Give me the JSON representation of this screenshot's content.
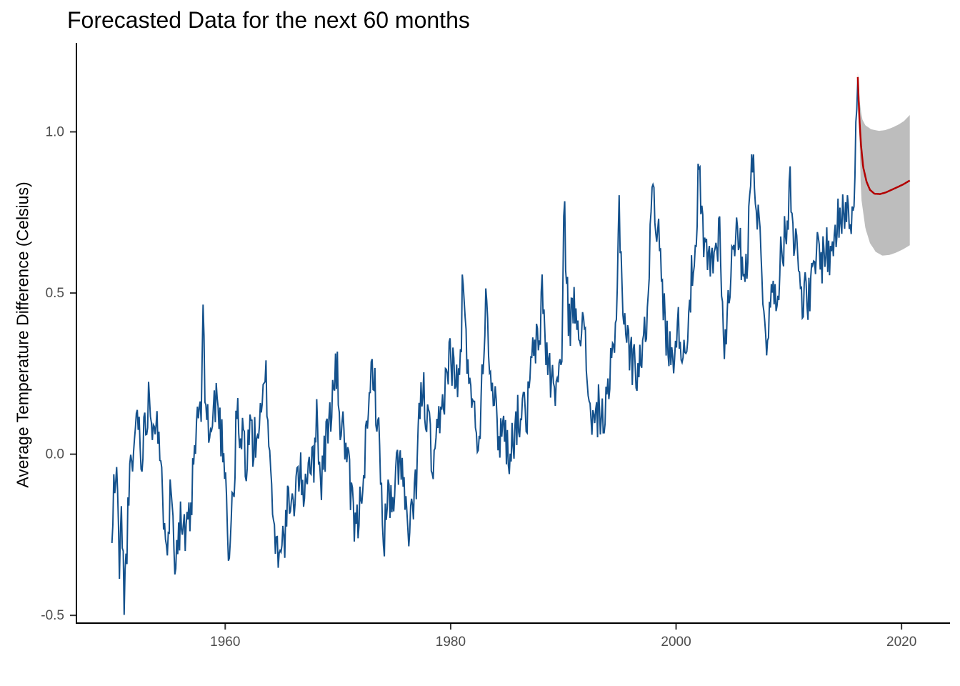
{
  "title": "Forecasted Data for the next 60 months",
  "axes": {
    "y": {
      "title": "Average Temperature Difference (Celsius)",
      "ticks": [
        {
          "value": -0.5,
          "label": "-0.5"
        },
        {
          "value": 0.0,
          "label": "0.0"
        },
        {
          "value": 0.5,
          "label": "0.5"
        },
        {
          "value": 1.0,
          "label": "1.0"
        }
      ]
    },
    "x": {
      "title": "",
      "ticks": [
        {
          "value": 1960,
          "label": "1960"
        },
        {
          "value": 1980,
          "label": "1980"
        },
        {
          "value": 2000,
          "label": "2000"
        },
        {
          "value": 2020,
          "label": "2020"
        }
      ]
    }
  },
  "colors": {
    "observed_line": "#14518c",
    "forecast_line": "#b30000",
    "confidence_band": "#bdbdbd",
    "axis_line": "#000000",
    "tick_mark": "#333333",
    "tick_label": "#4d4d4d",
    "background": "#ffffff"
  },
  "chart_data": {
    "type": "line",
    "title": "Forecasted Data for the next 60 months",
    "xlabel": "",
    "ylabel": "Average Temperature Difference (Celsius)",
    "x_domain": [
      1946.8,
      2024.3
    ],
    "y_domain": [
      -0.524,
      1.276
    ],
    "grid": false,
    "legend": "none",
    "description": "Monthly average temperature difference observations (blue) from 1950 to early 2016, with a 60-month forecast (red mean line) and forecast confidence band (gray) extending to about 2021.",
    "observed": {
      "name": "observed-monthly-series",
      "sampling_months": 1,
      "noise": {
        "seed": 11,
        "amplitude": 0.16,
        "taper_after": 2015.95,
        "taper_factor": 0.25
      },
      "control_points": [
        [
          1949.95,
          -0.3
        ],
        [
          1950.1,
          -0.12
        ],
        [
          1950.35,
          -0.05
        ],
        [
          1950.6,
          -0.33
        ],
        [
          1950.8,
          -0.2
        ],
        [
          1951.05,
          -0.45
        ],
        [
          1951.3,
          -0.25
        ],
        [
          1951.6,
          -0.05
        ],
        [
          1951.9,
          0.0
        ],
        [
          1952.2,
          0.17
        ],
        [
          1952.5,
          0.0
        ],
        [
          1952.9,
          0.08
        ],
        [
          1953.2,
          0.19
        ],
        [
          1953.6,
          0.1
        ],
        [
          1953.9,
          0.15
        ],
        [
          1954.2,
          -0.05
        ],
        [
          1954.5,
          -0.15
        ],
        [
          1954.9,
          -0.25
        ],
        [
          1955.2,
          -0.1
        ],
        [
          1955.5,
          -0.3
        ],
        [
          1955.8,
          -0.25
        ],
        [
          1956.1,
          -0.2
        ],
        [
          1956.5,
          -0.28
        ],
        [
          1956.9,
          -0.2
        ],
        [
          1957.2,
          -0.05
        ],
        [
          1957.5,
          0.1
        ],
        [
          1957.9,
          0.15
        ],
        [
          1958.03,
          0.39
        ],
        [
          1958.3,
          0.15
        ],
        [
          1958.6,
          0.05
        ],
        [
          1958.9,
          0.1
        ],
        [
          1959.2,
          0.19
        ],
        [
          1959.5,
          0.1
        ],
        [
          1959.9,
          0.0
        ],
        [
          1960.15,
          -0.1
        ],
        [
          1960.3,
          -0.36
        ],
        [
          1960.6,
          -0.15
        ],
        [
          1960.9,
          -0.05
        ],
        [
          1961.0,
          0.18
        ],
        [
          1961.3,
          0.0
        ],
        [
          1961.6,
          0.08
        ],
        [
          1961.9,
          -0.05
        ],
        [
          1962.2,
          0.1
        ],
        [
          1962.5,
          0.02
        ],
        [
          1962.9,
          0.08
        ],
        [
          1963.2,
          0.1
        ],
        [
          1963.6,
          0.24
        ],
        [
          1963.9,
          0.05
        ],
        [
          1964.3,
          -0.22
        ],
        [
          1964.6,
          -0.3
        ],
        [
          1964.9,
          -0.25
        ],
        [
          1965.2,
          -0.28
        ],
        [
          1965.6,
          -0.15
        ],
        [
          1965.9,
          -0.2
        ],
        [
          1966.2,
          -0.1
        ],
        [
          1966.6,
          -0.05
        ],
        [
          1966.9,
          -0.12
        ],
        [
          1967.2,
          -0.05
        ],
        [
          1967.6,
          0.0
        ],
        [
          1967.9,
          -0.08
        ],
        [
          1968.1,
          0.21
        ],
        [
          1968.4,
          -0.1
        ],
        [
          1968.8,
          0.0
        ],
        [
          1969.2,
          0.1
        ],
        [
          1969.9,
          0.27
        ],
        [
          1970.2,
          0.1
        ],
        [
          1970.6,
          0.05
        ],
        [
          1970.9,
          -0.05
        ],
        [
          1971.2,
          -0.15
        ],
        [
          1971.6,
          -0.25
        ],
        [
          1971.9,
          -0.18
        ],
        [
          1972.2,
          -0.05
        ],
        [
          1972.6,
          0.05
        ],
        [
          1972.9,
          0.2
        ],
        [
          1973.05,
          0.31
        ],
        [
          1973.4,
          0.15
        ],
        [
          1973.8,
          -0.05
        ],
        [
          1974.0,
          -0.28
        ],
        [
          1974.5,
          -0.12
        ],
        [
          1974.9,
          -0.2
        ],
        [
          1975.2,
          -0.05
        ],
        [
          1975.6,
          0.0
        ],
        [
          1975.9,
          -0.15
        ],
        [
          1976.3,
          -0.26
        ],
        [
          1976.6,
          -0.2
        ],
        [
          1976.9,
          -0.1
        ],
        [
          1977.2,
          0.12
        ],
        [
          1977.6,
          0.2
        ],
        [
          1977.9,
          0.1
        ],
        [
          1978.2,
          0.05
        ],
        [
          1978.45,
          -0.1
        ],
        [
          1978.9,
          0.08
        ],
        [
          1979.2,
          0.12
        ],
        [
          1979.6,
          0.25
        ],
        [
          1979.9,
          0.3
        ],
        [
          1980.2,
          0.28
        ],
        [
          1980.6,
          0.2
        ],
        [
          1980.9,
          0.3
        ],
        [
          1981.05,
          0.55
        ],
        [
          1981.4,
          0.3
        ],
        [
          1981.8,
          0.25
        ],
        [
          1982.1,
          0.1
        ],
        [
          1982.5,
          0.05
        ],
        [
          1982.9,
          0.3
        ],
        [
          1983.1,
          0.52
        ],
        [
          1983.5,
          0.3
        ],
        [
          1983.9,
          0.15
        ],
        [
          1984.3,
          0.05
        ],
        [
          1984.7,
          0.1
        ],
        [
          1985.1,
          0.0
        ],
        [
          1985.5,
          0.05
        ],
        [
          1985.9,
          0.1
        ],
        [
          1986.3,
          0.15
        ],
        [
          1986.7,
          0.1
        ],
        [
          1987.1,
          0.25
        ],
        [
          1987.5,
          0.35
        ],
        [
          1987.9,
          0.3
        ],
        [
          1988.05,
          0.56
        ],
        [
          1988.4,
          0.35
        ],
        [
          1988.8,
          0.25
        ],
        [
          1989.2,
          0.2
        ],
        [
          1989.6,
          0.25
        ],
        [
          1989.9,
          0.3
        ],
        [
          1990.05,
          0.76
        ],
        [
          1990.5,
          0.4
        ],
        [
          1990.9,
          0.45
        ],
        [
          1991.2,
          0.45
        ],
        [
          1991.6,
          0.4
        ],
        [
          1991.9,
          0.35
        ],
        [
          1992.2,
          0.2
        ],
        [
          1992.7,
          0.08
        ],
        [
          1993.2,
          0.15
        ],
        [
          1993.6,
          0.1
        ],
        [
          1993.9,
          0.15
        ],
        [
          1994.2,
          0.25
        ],
        [
          1994.6,
          0.35
        ],
        [
          1994.95,
          0.77
        ],
        [
          1995.3,
          0.45
        ],
        [
          1995.7,
          0.35
        ],
        [
          1996.0,
          0.3
        ],
        [
          1996.4,
          0.26
        ],
        [
          1996.8,
          0.3
        ],
        [
          1997.2,
          0.35
        ],
        [
          1997.6,
          0.55
        ],
        [
          1997.9,
          0.9
        ],
        [
          1998.2,
          0.75
        ],
        [
          1998.6,
          0.6
        ],
        [
          1998.9,
          0.45
        ],
        [
          1999.2,
          0.35
        ],
        [
          1999.6,
          0.3
        ],
        [
          1999.9,
          0.35
        ],
        [
          2000.3,
          0.4
        ],
        [
          2000.7,
          0.3
        ],
        [
          2001.0,
          0.4
        ],
        [
          2001.4,
          0.55
        ],
        [
          2001.8,
          0.6
        ],
        [
          2002.0,
          0.91
        ],
        [
          2002.4,
          0.65
        ],
        [
          2002.8,
          0.6
        ],
        [
          2003.2,
          0.6
        ],
        [
          2003.6,
          0.65
        ],
        [
          2003.9,
          0.7
        ],
        [
          2004.3,
          0.3
        ],
        [
          2004.7,
          0.5
        ],
        [
          2005.1,
          0.7
        ],
        [
          2005.5,
          0.65
        ],
        [
          2005.9,
          0.6
        ],
        [
          2006.3,
          0.6
        ],
        [
          2006.8,
          0.96
        ],
        [
          2007.2,
          0.75
        ],
        [
          2007.6,
          0.6
        ],
        [
          2007.95,
          0.35
        ],
        [
          2008.3,
          0.45
        ],
        [
          2008.7,
          0.5
        ],
        [
          2009.1,
          0.55
        ],
        [
          2009.5,
          0.65
        ],
        [
          2009.9,
          0.7
        ],
        [
          2010.05,
          0.92
        ],
        [
          2010.4,
          0.7
        ],
        [
          2010.8,
          0.6
        ],
        [
          2011.2,
          0.5
        ],
        [
          2011.8,
          0.48
        ],
        [
          2012.2,
          0.55
        ],
        [
          2012.6,
          0.65
        ],
        [
          2012.9,
          0.6
        ],
        [
          2013.3,
          0.65
        ],
        [
          2013.7,
          0.6
        ],
        [
          2014.1,
          0.7
        ],
        [
          2014.5,
          0.72
        ],
        [
          2014.9,
          0.75
        ],
        [
          2015.2,
          0.8
        ],
        [
          2015.5,
          0.73
        ],
        [
          2015.8,
          0.85
        ],
        [
          2016.0,
          1.05
        ],
        [
          2016.12,
          1.17
        ]
      ]
    },
    "forecast": {
      "name": "forecast-60-months",
      "horizon_months": 60,
      "mean": [
        [
          2016.12,
          1.17
        ],
        [
          2016.25,
          1.05
        ],
        [
          2016.4,
          0.96
        ],
        [
          2016.6,
          0.89
        ],
        [
          2016.9,
          0.845
        ],
        [
          2017.2,
          0.82
        ],
        [
          2017.6,
          0.808
        ],
        [
          2018.1,
          0.807
        ],
        [
          2018.6,
          0.812
        ],
        [
          2019.1,
          0.82
        ],
        [
          2019.6,
          0.828
        ],
        [
          2020.1,
          0.836
        ],
        [
          2020.73,
          0.849
        ]
      ],
      "upper": [
        [
          2016.12,
          1.185
        ],
        [
          2016.3,
          1.09
        ],
        [
          2016.5,
          1.04
        ],
        [
          2016.8,
          1.02
        ],
        [
          2017.3,
          1.008
        ],
        [
          2018.0,
          1.003
        ],
        [
          2018.5,
          1.005
        ],
        [
          2019.1,
          1.012
        ],
        [
          2019.7,
          1.022
        ],
        [
          2020.2,
          1.033
        ],
        [
          2020.73,
          1.052
        ]
      ],
      "lower": [
        [
          2016.12,
          1.15
        ],
        [
          2016.3,
          0.95
        ],
        [
          2016.4,
          0.8
        ],
        [
          2016.8,
          0.7
        ],
        [
          2017.2,
          0.655
        ],
        [
          2017.7,
          0.628
        ],
        [
          2018.3,
          0.616
        ],
        [
          2018.9,
          0.618
        ],
        [
          2019.5,
          0.625
        ],
        [
          2020.1,
          0.635
        ],
        [
          2020.73,
          0.648
        ]
      ]
    }
  }
}
